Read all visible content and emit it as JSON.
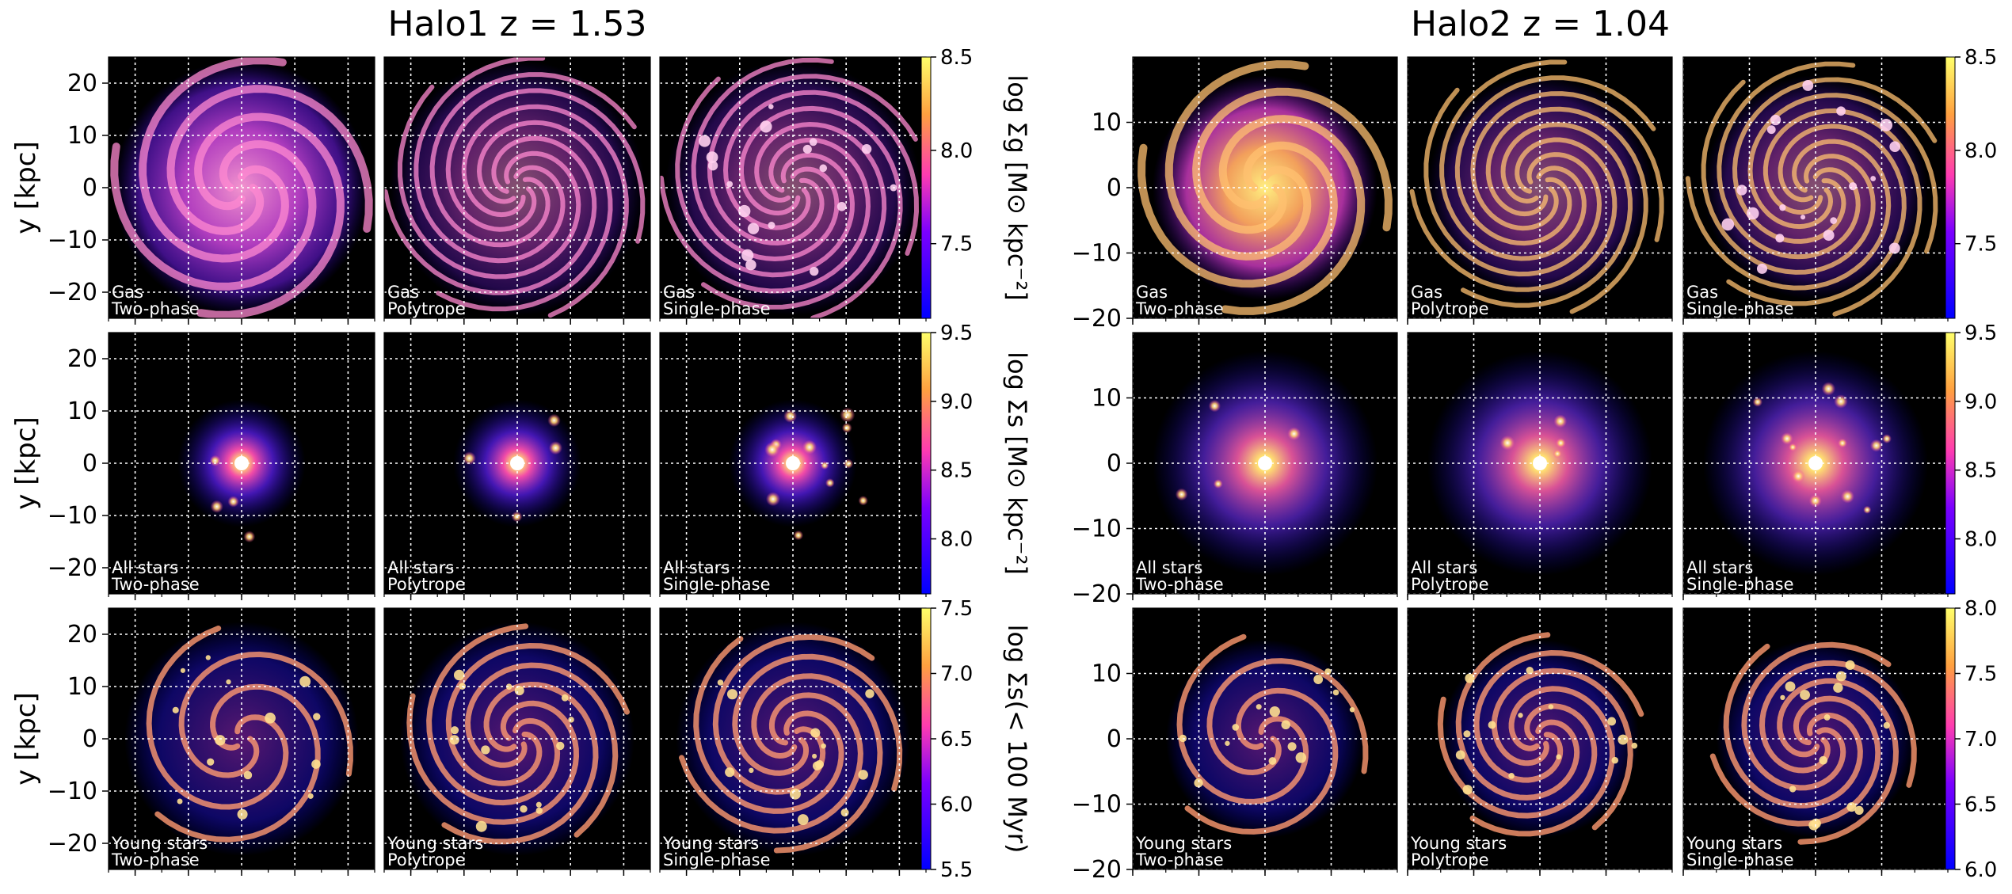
{
  "figure": {
    "halos": [
      {
        "name": "Halo1",
        "redshift": "z = 1.53",
        "xlim": [
          -25,
          25
        ],
        "ylim": [
          -25,
          25
        ],
        "ticks": [
          -20,
          -10,
          0,
          10,
          20
        ],
        "y_tick_labels": [
          "20",
          "10",
          "0",
          "−10",
          "−20"
        ]
      },
      {
        "name": "Halo2",
        "redshift": "z = 1.04",
        "xlim": [
          -20,
          20
        ],
        "ylim": [
          -20,
          20
        ],
        "ticks": [
          -20,
          -10,
          0,
          10
        ],
        "y_tick_labels": [
          "10",
          "0",
          "−10",
          "−20"
        ]
      }
    ],
    "ylabel": "y [kpc]",
    "panel_labels": [
      [
        "Gas",
        "Two-phase"
      ],
      [
        "Gas",
        "Polytrope"
      ],
      [
        "Gas",
        "Single-phase"
      ],
      [
        "All stars",
        "Two-phase"
      ],
      [
        "All stars",
        "Polytrope"
      ],
      [
        "All stars",
        "Single-phase"
      ],
      [
        "Young stars",
        "Two-phase"
      ],
      [
        "Young stars",
        "Polytrope"
      ],
      [
        "Young stars",
        "Single-phase"
      ]
    ],
    "colorbars": [
      {
        "label": "log Σg [M⊙ kpc⁻²]",
        "halo1": {
          "range": [
            7.1,
            8.5
          ],
          "ticks": [
            "8.5",
            "8.0",
            "7.5"
          ],
          "tick_values": [
            8.5,
            8.0,
            7.5
          ]
        },
        "halo2": {
          "range": [
            7.1,
            8.5
          ],
          "ticks": [
            "8.5",
            "8.0",
            "7.5"
          ],
          "tick_values": [
            8.5,
            8.0,
            7.5
          ]
        }
      },
      {
        "label": "log Σs [M⊙ kpc⁻²]",
        "halo1": {
          "range": [
            7.6,
            9.5
          ],
          "ticks": [
            "9.5",
            "9.0",
            "8.5",
            "8.0"
          ],
          "tick_values": [
            9.5,
            9.0,
            8.5,
            8.0
          ]
        },
        "halo2": {
          "range": [
            7.6,
            9.5
          ],
          "ticks": [
            "9.5",
            "9.0",
            "8.5",
            "8.0"
          ],
          "tick_values": [
            9.5,
            9.0,
            8.5,
            8.0
          ]
        }
      },
      {
        "label": "log Σs(< 100 Myr)",
        "halo1": {
          "range": [
            5.5,
            7.5
          ],
          "ticks": [
            "7.5",
            "7.0",
            "6.5",
            "6.0",
            "5.5"
          ],
          "tick_values": [
            7.5,
            7.0,
            6.5,
            6.0,
            5.5
          ]
        },
        "halo2": {
          "range": [
            6.0,
            8.0
          ],
          "ticks": [
            "8.0",
            "7.5",
            "7.0",
            "6.5",
            "6.0"
          ],
          "tick_values": [
            8.0,
            7.5,
            7.0,
            6.5,
            6.0
          ]
        }
      }
    ]
  },
  "chart_data": {
    "type": "heatmap",
    "colormap": "gnuplot2",
    "grid": true,
    "rows": [
      "Gas",
      "All stars",
      "Young stars"
    ],
    "columns": [
      "Two-phase",
      "Polytrope",
      "Single-phase"
    ]
  }
}
